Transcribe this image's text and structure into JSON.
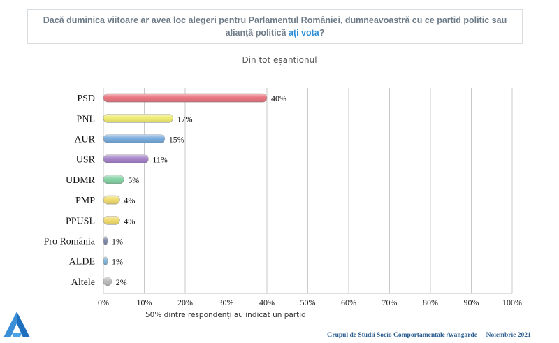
{
  "question": {
    "part1": "Dacă duminica viitoare ar avea loc alegeri pentru Parlamentul României, dumneavoastră cu ce partid politic sau alianță politică ",
    "highlight": "ați vota",
    "part2": "?"
  },
  "sample_label": "Din tot eșantionul",
  "footnote": "50% dintre respondenți au indicat un partid",
  "footer": {
    "org": "Grupul de Studii Socio Comportamentale Avangarde",
    "sep": "  -  ",
    "date": "Noiembrie 2021"
  },
  "chart_data": {
    "type": "bar",
    "orientation": "horizontal",
    "categories": [
      "PSD",
      "PNL",
      "AUR",
      "USR",
      "UDMR",
      "PMP",
      "PPUSL",
      "Pro România",
      "ALDE",
      "Altele"
    ],
    "values": [
      40,
      17,
      15,
      11,
      5,
      4,
      4,
      1,
      1,
      2
    ],
    "value_labels": [
      "40%",
      "17%",
      "15%",
      "11%",
      "5%",
      "4%",
      "4%",
      "1%",
      "1%",
      "2%"
    ],
    "colors": [
      "#e8707a",
      "#eeea6e",
      "#74a8dc",
      "#a07cc4",
      "#7fd0a0",
      "#f0da6a",
      "#f0da6a",
      "#7a86a8",
      "#7ab0d8",
      "#b8b8b8"
    ],
    "xlim": [
      0,
      100
    ],
    "xticks": [
      "0%",
      "10%",
      "20%",
      "30%",
      "40%",
      "50%",
      "60%",
      "70%",
      "80%",
      "90%",
      "100%"
    ],
    "grid": true
  }
}
